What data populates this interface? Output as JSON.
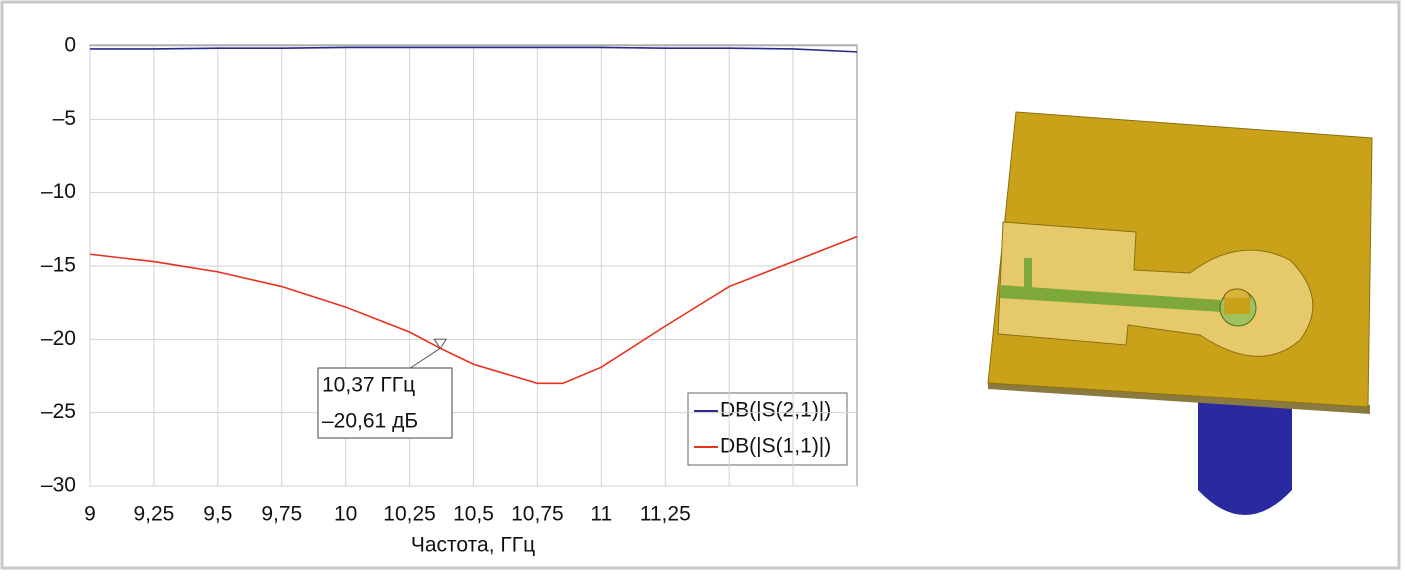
{
  "chart_data": {
    "type": "line",
    "x_label": "Частота, ГГц",
    "xlim": [
      9,
      12
    ],
    "ylim": [
      -30,
      0
    ],
    "xticks": [
      9,
      {
        "value": 9.25,
        "label": "9,25"
      },
      {
        "value": 9.5,
        "label": "9,5"
      },
      {
        "value": 9.75,
        "label": "9,75"
      },
      10,
      {
        "value": 10.25,
        "label": "10,25"
      },
      {
        "value": 10.5,
        "label": "10,5"
      },
      {
        "value": 10.75,
        "label": "10,75"
      },
      11,
      {
        "value": 11.25,
        "label": "11,25"
      },
      {
        "value": 11.5,
        "label": null
      },
      {
        "value": 11.75,
        "label": null
      }
    ],
    "yticks": [
      0,
      {
        "value": -5,
        "label": "–5"
      },
      {
        "value": -10,
        "label": "–10"
      },
      {
        "value": -15,
        "label": "–15"
      },
      {
        "value": -20,
        "label": "–20"
      },
      {
        "value": -25,
        "label": "–25"
      },
      {
        "value": -30,
        "label": "–30"
      }
    ],
    "grid": true,
    "legend": "lower right",
    "x": [
      9,
      9.25,
      9.5,
      9.75,
      10,
      10.25,
      10.37,
      10.5,
      10.75,
      10.85,
      11,
      11.25,
      11.5,
      11.75,
      12
    ],
    "series": [
      {
        "name": "DB(|S(2,1)|)",
        "color": "#2a2a8c",
        "values": [
          -0.2,
          -0.2,
          -0.15,
          -0.15,
          -0.1,
          -0.1,
          -0.1,
          -0.1,
          -0.1,
          -0.1,
          -0.1,
          -0.15,
          -0.15,
          -0.2,
          -0.4
        ]
      },
      {
        "name": "DB(|S(1,1)|)",
        "color": "#e8321e",
        "values": [
          -14.2,
          -14.7,
          -15.4,
          -16.4,
          -17.8,
          -19.5,
          -20.61,
          -21.7,
          -23.0,
          -23.0,
          -21.9,
          -19.1,
          -16.4,
          -14.7,
          -13.0
        ]
      }
    ],
    "annotations": [
      {
        "x": 10.37,
        "y": -20.61,
        "lines": [
          "10,37 ГГц",
          "–20,61 дБ"
        ]
      }
    ]
  }
}
